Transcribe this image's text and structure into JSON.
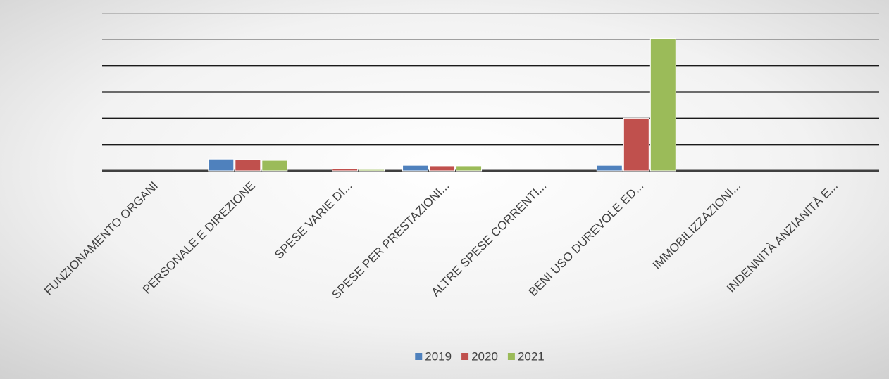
{
  "chart_data": {
    "type": "bar",
    "categories": [
      "FUNZIONAMENTO ORGANI",
      "PERSONALE E DIREZIONE",
      "SPESE VARIE DI...",
      "SPESE PER PRESTAZIONI...",
      "ALTRE SPESE CORRENTI...",
      "BENI USO DUREVOLE ED...",
      "IMMOBILIZZAZIONI...",
      "INDENNITÀ ANZIANITÀ E..."
    ],
    "series": [
      {
        "name": "2019",
        "color": "#4f81bd",
        "values": [
          0,
          0.45,
          0,
          0.21,
          0,
          0.21,
          0,
          0
        ]
      },
      {
        "name": "2020",
        "color": "#c0504d",
        "values": [
          0,
          0.43,
          0.08,
          0.19,
          0,
          2.0,
          0,
          0
        ]
      },
      {
        "name": "2021",
        "color": "#9bbb59",
        "values": [
          0,
          0.4,
          0.05,
          0.19,
          0,
          5.05,
          0,
          0
        ]
      }
    ],
    "ylim": [
      0,
      6
    ],
    "yticks": [
      0,
      1,
      2,
      3,
      4,
      5,
      6
    ],
    "grid": true,
    "legend": "bottom"
  }
}
